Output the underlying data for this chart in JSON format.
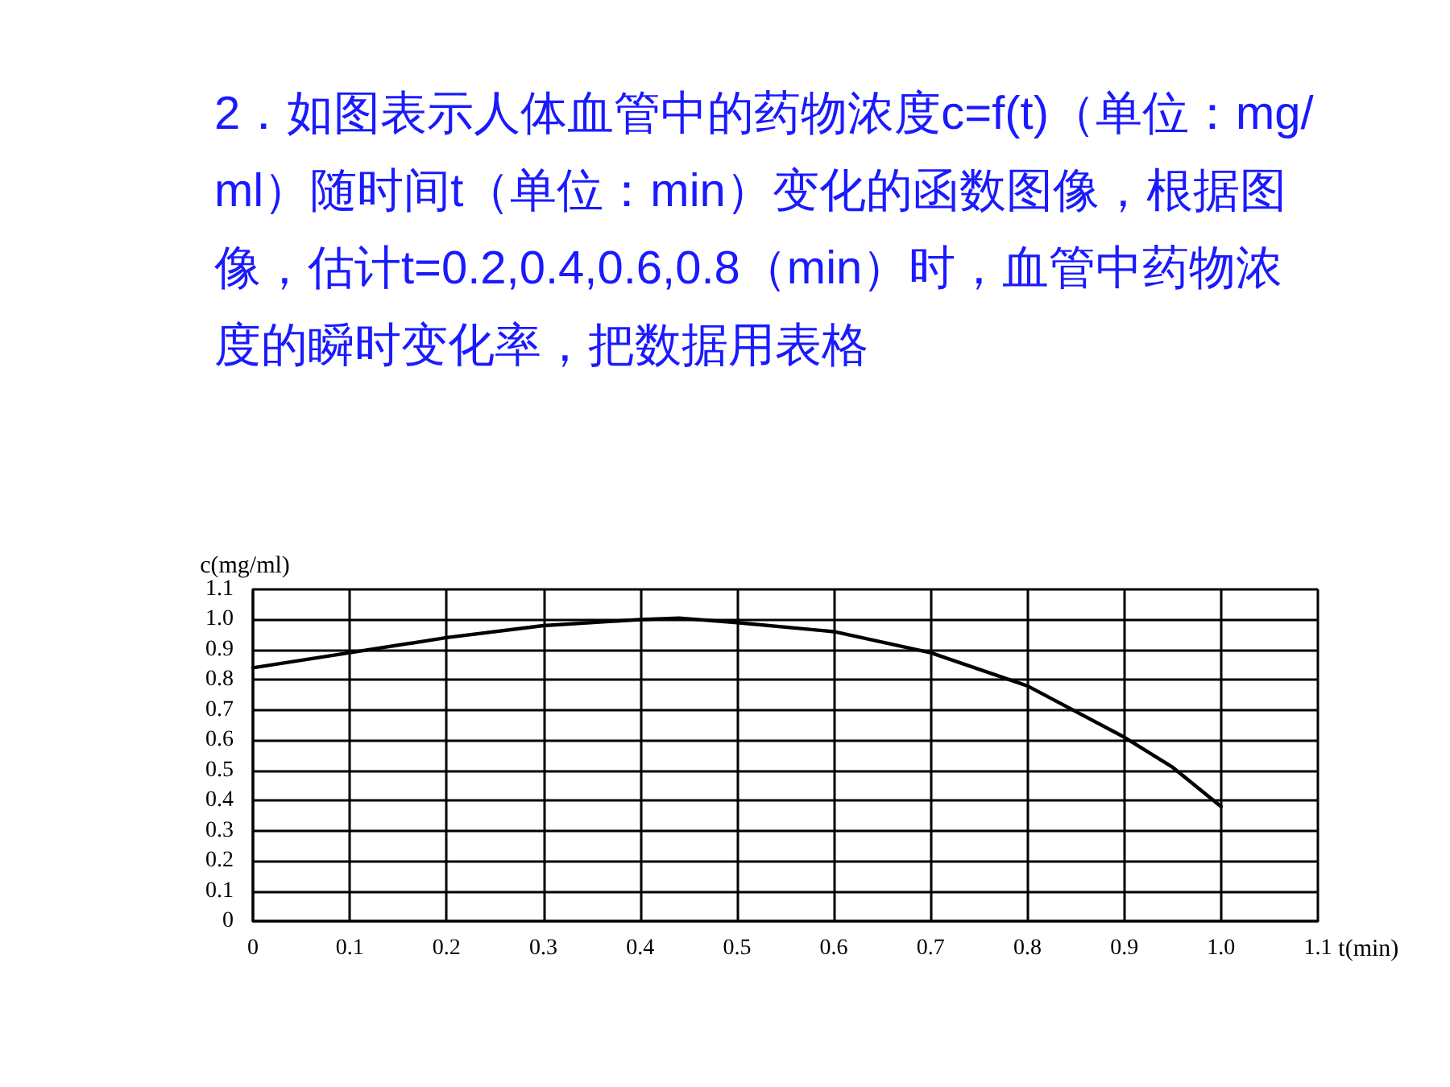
{
  "chart_data": {
    "type": "line",
    "title": "2．如图表示人体血管中的药物浓度c=f(t)（单位：mg/ml）随时间t（单位：min）变化的函数图像，根据图像，估计t=0.2,0.4,0.6,0.8（min）时，血管中药物浓度的瞬时变化率，把数据用表格",
    "xlabel": "t(min)",
    "ylabel": "c(mg/ml)",
    "series": [
      {
        "color": "#000000",
        "x": [
          0,
          0.1,
          0.2,
          0.3,
          0.4,
          0.44,
          0.5,
          0.6,
          0.7,
          0.8,
          0.9,
          0.95,
          1.0
        ],
        "values": [
          0.84,
          0.89,
          0.94,
          0.98,
          1.0,
          1.005,
          0.99,
          0.96,
          0.89,
          0.78,
          0.61,
          0.51,
          0.38
        ]
      }
    ],
    "xlim": [
      0,
      1.1
    ],
    "xticks": [
      0,
      0.1,
      0.2,
      0.3,
      0.4,
      0.5,
      0.6,
      0.7,
      0.8,
      0.9,
      {
        "value": 1,
        "label": "1.0"
      },
      1.1
    ],
    "ylim": [
      0,
      1.1
    ],
    "yticks": [
      0,
      0.1,
      0.2,
      0.3,
      0.4,
      0.5,
      0.6,
      0.7,
      0.8,
      0.9,
      {
        "value": 1,
        "label": "1.0"
      },
      1.1
    ],
    "grid": true,
    "marker": "none",
    "line_style": "solid"
  }
}
